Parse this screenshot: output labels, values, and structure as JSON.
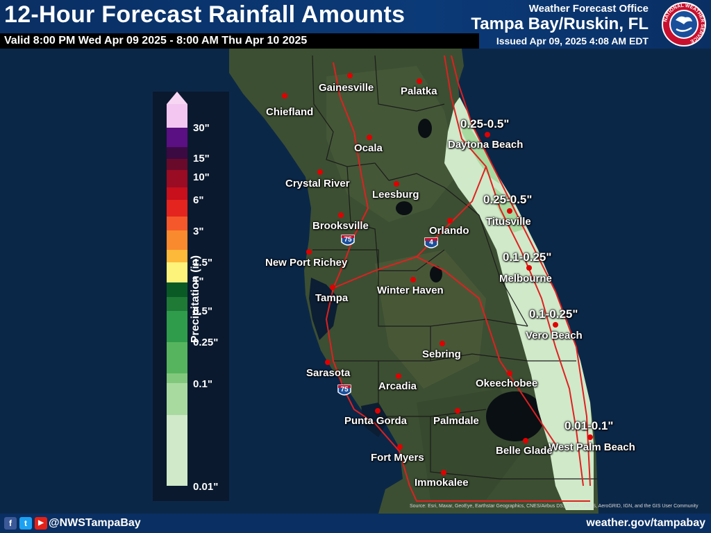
{
  "header": {
    "title": "12-Hour Forecast Rainfall Amounts",
    "valid": "Valid 8:00 PM Wed Apr 09 2025 - 8:00 AM Thu Apr 10 2025",
    "office_label": "Weather Forecast Office",
    "office": "Tampa Bay/Ruskin, FL",
    "issued": "Issued Apr 09, 2025 4:08 AM EDT",
    "seal_text": "NATIONAL WEATHER SERVICE"
  },
  "legend": {
    "title": "Precipitation (in)",
    "ticks": [
      "30\"",
      "15\"",
      "10\"",
      "6\"",
      "3\"",
      "1.5\"",
      "1\"",
      "0.5\"",
      "0.25\"",
      "0.1\"",
      "0.01\""
    ],
    "colors": [
      "#f2c6f0",
      "#5a0f82",
      "#3c0a42",
      "#6a0a2a",
      "#9a0b24",
      "#c80f1c",
      "#e4241e",
      "#f5582a",
      "#fa8a2e",
      "#fdb93a",
      "#fdf27a",
      "#0a5a26",
      "#1f7a36",
      "#2e9c4a",
      "#56b45e",
      "#82c87c",
      "#a8daa0",
      "#cfe9c9"
    ],
    "top_arrow_color": "#f7d6f4"
  },
  "cities": [
    {
      "name": "Gainesville"
    },
    {
      "name": "Palatka"
    },
    {
      "name": "Chiefland"
    },
    {
      "name": "Ocala"
    },
    {
      "name": "Daytona Beach"
    },
    {
      "name": "Crystal River"
    },
    {
      "name": "Leesburg"
    },
    {
      "name": "Titusville"
    },
    {
      "name": "Brooksville"
    },
    {
      "name": "Orlando"
    },
    {
      "name": "New Port Richey"
    },
    {
      "name": "Melbourne"
    },
    {
      "name": "Tampa"
    },
    {
      "name": "Winter Haven"
    },
    {
      "name": "Vero Beach"
    },
    {
      "name": "Sebring"
    },
    {
      "name": "Sarasota"
    },
    {
      "name": "Arcadia"
    },
    {
      "name": "Okeechobee"
    },
    {
      "name": "Punta Gorda"
    },
    {
      "name": "Palmdale"
    },
    {
      "name": "West Palm Beach"
    },
    {
      "name": "Belle Glade"
    },
    {
      "name": "Fort Myers"
    },
    {
      "name": "Immokalee"
    }
  ],
  "amounts": [
    {
      "value": "0.25-0.5\""
    },
    {
      "value": "0.25-0.5\""
    },
    {
      "value": "0.1-0.25\""
    },
    {
      "value": "0.1-0.25\""
    },
    {
      "value": "0.01-0.1\""
    }
  ],
  "interstates": [
    "75",
    "4",
    "75"
  ],
  "map_colors": {
    "water": "#0b2748",
    "land": "#3c4f32",
    "rain_light": "#cfe9c9",
    "rain_mid": "#a8daa0",
    "roads": "#e02020",
    "county_lines": "#1c1c1c",
    "lake": "#0a0f14"
  },
  "attribution": "Source: Esri, Maxar, GeoEye, Earthstar Geographics, CNES/Airbus DS, USDA, USGS, AeroGRID, IGN, and the GIS User Community",
  "footer": {
    "facebook_icon": "f",
    "twitter_icon": "t",
    "youtube_icon": "▶",
    "handle": "@NWSTampaBay",
    "website": "weather.gov/tampabay"
  }
}
